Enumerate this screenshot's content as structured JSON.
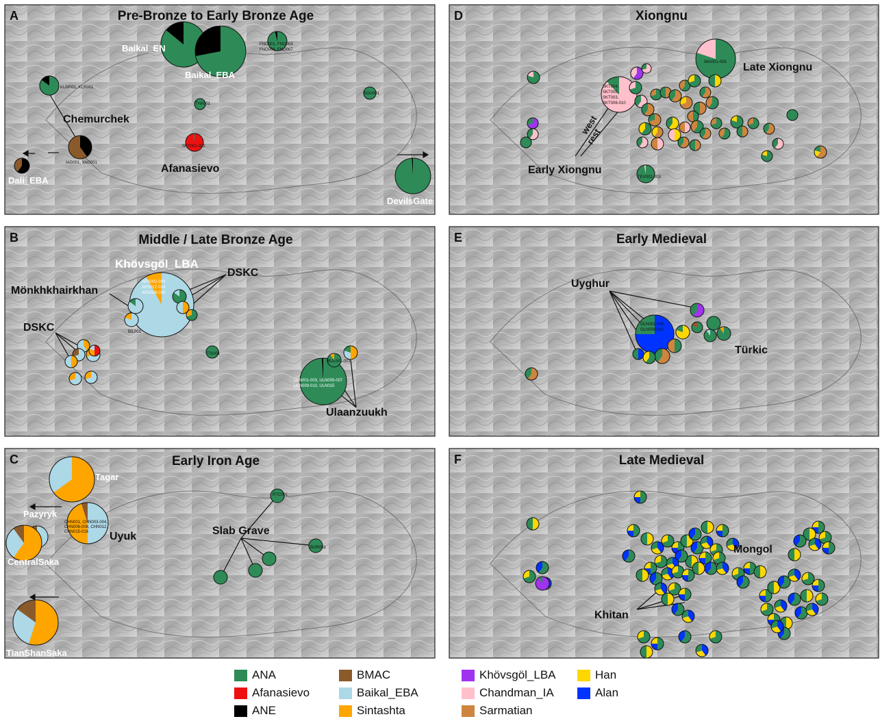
{
  "colors": {
    "ANA": "#2e8b57",
    "Afanasievo": "#ee1111",
    "ANE": "#000000",
    "BMAC": "#8b5a2b",
    "Baikal_EBA": "#add8e6",
    "Sintashta": "#ffa500",
    "Khovsgol_LBA": "#a033ee",
    "Chandman_IA": "#ffc0cb",
    "Sarmatian": "#cd853f",
    "Han": "#ffd700",
    "Alan": "#0033ff"
  },
  "panels": [
    {
      "letter": "A",
      "title": "Pre-Bronze to Early Bronze Age"
    },
    {
      "letter": "D",
      "title": "Xiongnu"
    },
    {
      "letter": "B",
      "title": "Middle / Late Bronze Age"
    },
    {
      "letter": "E",
      "title": "Early Medieval"
    },
    {
      "letter": "C",
      "title": "Early Iron Age"
    },
    {
      "letter": "F",
      "title": "Late Medieval"
    }
  ],
  "labels": {
    "baikal_en": "Baikal_EN",
    "baikal_eba": "Baikal_EBA",
    "chemurchek": "Chemurchek",
    "afanasievo": "Afanasievo",
    "dali_eba": "Dali_EBA",
    "devilsgate": "DevilsGate",
    "khovsgol_lba": "Khövsgöl_LBA",
    "dskc_top": "DSKC",
    "monkhkhairkhan": "Mönkhkhairkhan",
    "dskc_left": "DSKC",
    "ulaanzuukh": "Ulaanzuukh",
    "tagar": "Tagar",
    "pazyryk": "Pazyryk",
    "uyuk": "Uyuk",
    "centralsaka": "CentralSaka",
    "tianshansaka": "TianShanSaka",
    "slab_grave": "Slab Grave",
    "late_xiongnu": "Late Xiongnu",
    "early_xiongnu": "Early Xiongnu",
    "west": "west",
    "rest": "rest",
    "uyghur": "Uyghur",
    "turkic": "Türkic",
    "mongol": "Mongol",
    "khitan": "Khitan"
  },
  "site_labels": {
    "fno": "FNO001, FNO003",
    "fno2": "FNO006, FNO007",
    "kum": "KUM001, KLR001",
    "iag": "IAG001, YAG001",
    "skt": "SKT001-002",
    "sou": "SOU001",
    "tha": "THA001",
    "ars1": "ARS002-003",
    "ars2": "ARS017-018",
    "ars3": "ARS026-034",
    "bil": "BIL001",
    "tsi": "TSI001",
    "uln1": "ULN001-003, ULN005-007",
    "uln2": "ULN009-010, ULN015",
    "bul": "BUL001-002",
    "chn1": "CHN001, CHN003-004,",
    "chn2": "CHN006-008, CHN012,",
    "chn3": "CHN015-016",
    "rtc": "RTC001",
    "bor": "BOR001",
    "ima": "IMA001-008",
    "skt7a": "SKT004,",
    "skt7b": "SKT005,",
    "skt7c": "SKT003,",
    "skt7d": "SKT006-010",
    "tev": "TEV002-003",
    "oln1": "OLN002-006,",
    "oln2": "OLN008-012"
  },
  "legend": [
    {
      "key": "ANA",
      "label": "ANA"
    },
    {
      "key": "Afanasievo",
      "label": "Afanasievo"
    },
    {
      "key": "ANE",
      "label": "ANE"
    },
    {
      "key": "BMAC",
      "label": "BMAC"
    },
    {
      "key": "Baikal_EBA",
      "label": "Baikal_EBA"
    },
    {
      "key": "Sintashta",
      "label": "Sintashta"
    },
    {
      "key": "Khovsgol_LBA",
      "label": "Khövsgöl_LBA"
    },
    {
      "key": "Chandman_IA",
      "label": "Chandman_IA"
    },
    {
      "key": "Sarmatian",
      "label": "Sarmatian"
    },
    {
      "key": "Han",
      "label": "Han"
    },
    {
      "key": "Alan",
      "label": "Alan"
    }
  ]
}
